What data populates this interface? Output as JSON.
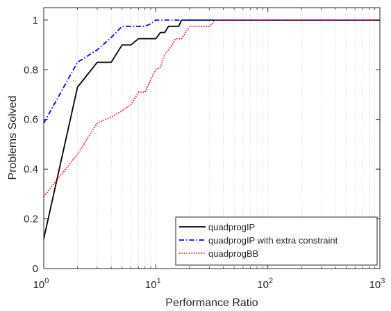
{
  "chart_data": {
    "type": "line",
    "title": "",
    "xlabel": "Performance Ratio",
    "ylabel": "Problems Solved",
    "xscale": "log",
    "xlim": [
      1,
      1000
    ],
    "ylim": [
      0,
      1.05
    ],
    "grid": "on (x major and minor, dotted)",
    "legend_position": "bottom-right",
    "x_ticks": [
      {
        "base": "10",
        "exp": "0"
      },
      {
        "base": "10",
        "exp": "1"
      },
      {
        "base": "10",
        "exp": "2"
      },
      {
        "base": "10",
        "exp": "3"
      }
    ],
    "y_ticks": [
      "0",
      "0.2",
      "0.4",
      "0.6",
      "0.8",
      "1"
    ],
    "series": [
      {
        "name": "quadprogIP",
        "color": "#000000",
        "style": "solid",
        "x": [
          1,
          2,
          3,
          4,
          5,
          6,
          7,
          9,
          10,
          11,
          12,
          13,
          16,
          17,
          1000
        ],
        "y": [
          0.12,
          0.73,
          0.83,
          0.83,
          0.9,
          0.9,
          0.925,
          0.925,
          0.925,
          0.95,
          0.95,
          0.975,
          0.975,
          1.0,
          1.0
        ]
      },
      {
        "name": "quadprogIP with extra constraint",
        "color": "#0000ff",
        "style": "dashdot",
        "x": [
          1,
          2,
          3,
          4,
          5,
          8,
          9,
          10,
          1000
        ],
        "y": [
          0.585,
          0.83,
          0.88,
          0.93,
          0.975,
          0.975,
          0.985,
          1.0,
          1.0
        ]
      },
      {
        "name": "quadprogBB",
        "color": "#ff0000",
        "style": "dotted",
        "x": [
          1,
          2,
          3,
          4,
          5,
          6,
          7,
          8,
          9,
          10,
          11,
          12,
          14,
          15,
          17,
          20,
          25,
          30,
          32,
          33,
          1000
        ],
        "y": [
          0.29,
          0.46,
          0.585,
          0.61,
          0.635,
          0.66,
          0.71,
          0.71,
          0.76,
          0.8,
          0.81,
          0.86,
          0.9,
          0.925,
          0.925,
          0.975,
          0.975,
          0.975,
          0.985,
          1.0,
          1.0
        ]
      }
    ]
  }
}
